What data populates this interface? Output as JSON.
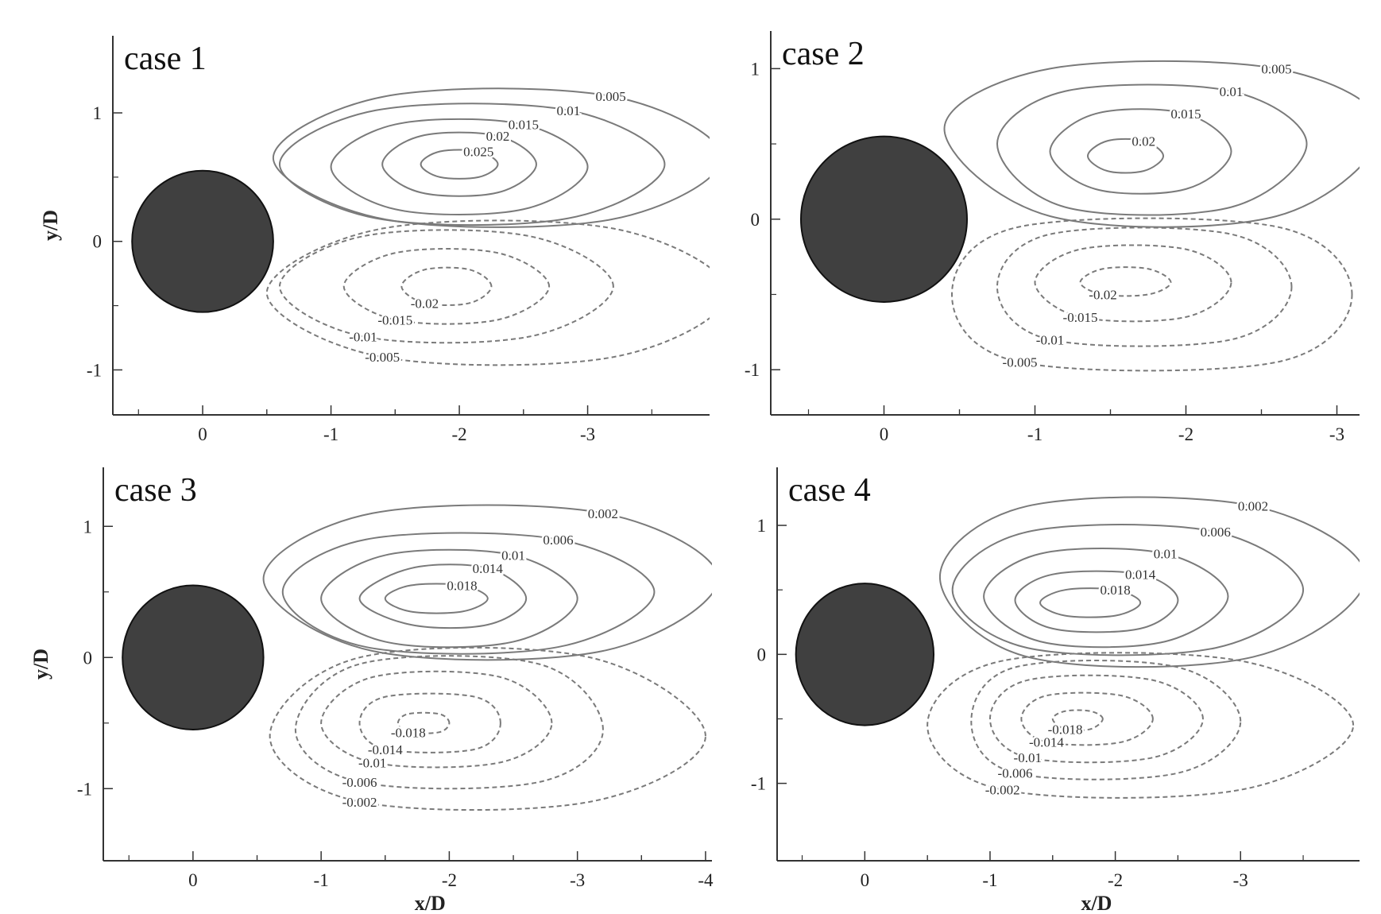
{
  "chart_data": [
    {
      "type": "contour",
      "title": "case 1",
      "ylabel": "y/D",
      "xlim": [
        0.7,
        -3.95
      ],
      "ylim": [
        -1.35,
        1.6
      ],
      "xticks": [
        0,
        -1,
        -2,
        -3
      ],
      "yticks": [
        -1,
        0,
        1
      ],
      "contours": [
        {
          "level": 0.025,
          "x": [
            -2.3,
            -2.15,
            -1.85,
            -1.7,
            -1.85,
            -2.15
          ],
          "y": [
            0.6,
            0.7,
            0.7,
            0.6,
            0.5,
            0.5
          ]
        },
        {
          "level": 0.02,
          "x": [
            -2.6,
            -2.3,
            -1.7,
            -1.4,
            -1.7,
            -2.3
          ],
          "y": [
            0.6,
            0.82,
            0.82,
            0.6,
            0.38,
            0.38
          ]
        },
        {
          "level": 0.015,
          "x": [
            -3.0,
            -2.5,
            -1.5,
            -1.0,
            -1.5,
            -2.5
          ],
          "y": [
            0.58,
            0.91,
            0.91,
            0.58,
            0.25,
            0.25
          ]
        },
        {
          "level": 0.01,
          "x": [
            -3.6,
            -2.85,
            -1.35,
            -0.6,
            -1.35,
            -2.85
          ],
          "y": [
            0.6,
            1.02,
            1.02,
            0.6,
            0.18,
            0.18
          ]
        },
        {
          "level": 0.005,
          "x": [
            -4.05,
            -3.18,
            -1.43,
            -0.55,
            -1.43,
            -3.18
          ],
          "y": [
            0.65,
            1.13,
            1.13,
            0.65,
            0.17,
            0.17
          ]
        },
        {
          "level": -0.02,
          "x": [
            -2.25,
            -2.08,
            -1.73,
            -1.55,
            -1.73,
            -2.08
          ],
          "y": [
            -0.35,
            -0.22,
            -0.22,
            -0.35,
            -0.48,
            -0.48
          ]
        },
        {
          "level": -0.015,
          "x": [
            -2.7,
            -2.3,
            -1.5,
            -1.1,
            -1.5,
            -2.3
          ],
          "y": [
            -0.35,
            -0.09,
            -0.09,
            -0.35,
            -0.61,
            -0.61
          ]
        },
        {
          "level": -0.01,
          "x": [
            -3.2,
            -2.55,
            -1.25,
            -0.6,
            -1.25,
            -2.55
          ],
          "y": [
            -0.35,
            0.04,
            0.04,
            -0.35,
            -0.74,
            -0.74
          ]
        },
        {
          "level": -0.005,
          "x": [
            -4.1,
            -3.2,
            -1.4,
            -0.5,
            -1.4,
            -3.2
          ],
          "y": [
            -0.4,
            0.1,
            0.1,
            -0.4,
            -0.9,
            -0.9
          ]
        }
      ]
    },
    {
      "type": "contour",
      "title": "case 2",
      "xlim": [
        0.75,
        -3.15
      ],
      "ylim": [
        -1.3,
        1.25
      ],
      "xticks": [
        0,
        -1,
        -2,
        -3
      ],
      "yticks": [
        -1,
        0,
        1
      ],
      "contours": [
        {
          "level": 0.02,
          "x": [
            -1.85,
            -1.72,
            -1.48,
            -1.35,
            -1.48,
            -1.72
          ],
          "y": [
            0.42,
            0.52,
            0.52,
            0.42,
            0.32,
            0.32
          ]
        },
        {
          "level": 0.015,
          "x": [
            -2.3,
            -2.0,
            -1.4,
            -1.1,
            -1.4,
            -2.0
          ],
          "y": [
            0.45,
            0.7,
            0.7,
            0.45,
            0.2,
            0.2
          ]
        },
        {
          "level": 0.01,
          "x": [
            -2.8,
            -2.3,
            -1.2,
            -0.75,
            -1.2,
            -2.3
          ],
          "y": [
            0.5,
            0.85,
            0.85,
            0.5,
            0.08,
            0.08
          ]
        },
        {
          "level": 0.005,
          "x": [
            -3.3,
            -2.6,
            -1.1,
            -0.4,
            -1.1,
            -2.6
          ],
          "y": [
            0.6,
            1.0,
            1.0,
            0.6,
            0.02,
            0.02
          ]
        },
        {
          "level": -0.02,
          "x": [
            -1.9,
            -1.75,
            -1.45,
            -1.3,
            -1.45,
            -1.75
          ],
          "y": [
            -0.42,
            -0.33,
            -0.33,
            -0.42,
            -0.5,
            -0.5
          ]
        },
        {
          "level": -0.015,
          "x": [
            -2.3,
            -2.0,
            -1.3,
            -1.0,
            -1.3,
            -2.0
          ],
          "y": [
            -0.42,
            -0.2,
            -0.2,
            -0.42,
            -0.65,
            -0.65
          ]
        },
        {
          "level": -0.01,
          "x": [
            -2.7,
            -2.3,
            -1.1,
            -0.75,
            -1.1,
            -2.3
          ],
          "y": [
            -0.45,
            -0.1,
            -0.1,
            -0.45,
            -0.8,
            -0.8
          ]
        },
        {
          "level": -0.005,
          "x": [
            -3.1,
            -2.6,
            -0.9,
            -0.45,
            -0.9,
            -2.6
          ],
          "y": [
            -0.5,
            -0.05,
            -0.05,
            -0.5,
            -0.95,
            -0.95
          ]
        }
      ]
    },
    {
      "type": "contour",
      "title": "case 3",
      "ylabel": "y/D",
      "xlabel": "x/D",
      "xlim": [
        0.7,
        -4.05
      ],
      "ylim": [
        -1.55,
        1.45
      ],
      "xticks": [
        0,
        -1,
        -2,
        -3,
        -4
      ],
      "yticks": [
        -1,
        0,
        1
      ],
      "contours": [
        {
          "level": 0.018,
          "x": [
            -2.3,
            -2.1,
            -1.7,
            -1.5,
            -1.7,
            -2.1
          ],
          "y": [
            0.45,
            0.55,
            0.55,
            0.45,
            0.35,
            0.35
          ]
        },
        {
          "level": 0.014,
          "x": [
            -2.6,
            -2.3,
            -1.7,
            -1.3,
            -1.7,
            -2.3
          ],
          "y": [
            0.45,
            0.68,
            0.68,
            0.45,
            0.25,
            0.25
          ]
        },
        {
          "level": 0.01,
          "x": [
            -3.0,
            -2.5,
            -1.5,
            -1.0,
            -1.5,
            -2.5
          ],
          "y": [
            0.45,
            0.78,
            0.78,
            0.45,
            0.12,
            0.12
          ]
        },
        {
          "level": 0.006,
          "x": [
            -3.6,
            -2.85,
            -1.35,
            -0.7,
            -1.35,
            -2.85
          ],
          "y": [
            0.5,
            0.9,
            0.9,
            0.5,
            0.08,
            0.08
          ]
        },
        {
          "level": 0.002,
          "x": [
            -4.1,
            -3.2,
            -1.4,
            -0.55,
            -1.4,
            -3.2
          ],
          "y": [
            0.6,
            1.1,
            1.1,
            0.6,
            0.05,
            0.05
          ]
        },
        {
          "level": -0.018,
          "x": [
            -2.0,
            -1.92,
            -1.68,
            -1.6,
            -1.68,
            -1.92
          ],
          "y": [
            -0.5,
            -0.43,
            -0.43,
            -0.5,
            -0.57,
            -0.57
          ]
        },
        {
          "level": -0.014,
          "x": [
            -2.4,
            -2.2,
            -1.5,
            -1.3,
            -1.5,
            -2.2
          ],
          "y": [
            -0.5,
            -0.3,
            -0.3,
            -0.5,
            -0.7,
            -0.7
          ]
        },
        {
          "level": -0.01,
          "x": [
            -2.8,
            -2.4,
            -1.4,
            -1.0,
            -1.4,
            -2.4
          ],
          "y": [
            -0.5,
            -0.15,
            -0.15,
            -0.5,
            -0.8,
            -0.8
          ]
        },
        {
          "level": -0.006,
          "x": [
            -3.2,
            -2.7,
            -1.3,
            -0.8,
            -1.3,
            -2.7
          ],
          "y": [
            -0.55,
            -0.05,
            -0.05,
            -0.55,
            -0.95,
            -0.95
          ]
        },
        {
          "level": -0.002,
          "x": [
            -4.0,
            -3.1,
            -1.3,
            -0.6,
            -1.3,
            -3.1
          ],
          "y": [
            -0.6,
            0.0,
            0.0,
            -0.6,
            -1.1,
            -1.1
          ]
        }
      ]
    },
    {
      "type": "contour",
      "title": "case 4",
      "xlabel": "x/D",
      "xlim": [
        0.7,
        -3.95
      ],
      "ylim": [
        -1.6,
        1.45
      ],
      "xticks": [
        0,
        -1,
        -2,
        -3
      ],
      "yticks": [
        -1,
        0,
        1
      ],
      "contours": [
        {
          "level": 0.018,
          "x": [
            -2.2,
            -2.0,
            -1.6,
            -1.4,
            -1.6,
            -2.0
          ],
          "y": [
            0.4,
            0.5,
            0.5,
            0.4,
            0.3,
            0.3
          ]
        },
        {
          "level": 0.014,
          "x": [
            -2.5,
            -2.2,
            -1.5,
            -1.2,
            -1.5,
            -2.2
          ],
          "y": [
            0.42,
            0.62,
            0.62,
            0.42,
            0.2,
            0.2
          ]
        },
        {
          "level": 0.01,
          "x": [
            -2.9,
            -2.4,
            -1.4,
            -0.95,
            -1.4,
            -2.4
          ],
          "y": [
            0.45,
            0.78,
            0.78,
            0.45,
            0.1,
            0.1
          ]
        },
        {
          "level": 0.006,
          "x": [
            -3.5,
            -2.8,
            -1.3,
            -0.7,
            -1.3,
            -2.8
          ],
          "y": [
            0.5,
            0.95,
            0.95,
            0.5,
            0.05,
            0.05
          ]
        },
        {
          "level": 0.002,
          "x": [
            -4.0,
            -3.1,
            -1.3,
            -0.6,
            -1.3,
            -3.1
          ],
          "y": [
            0.6,
            1.15,
            1.15,
            0.6,
            -0.02,
            -0.02
          ]
        },
        {
          "level": -0.018,
          "x": [
            -1.9,
            -1.8,
            -1.6,
            -1.5,
            -1.6,
            -1.8
          ],
          "y": [
            -0.5,
            -0.44,
            -0.44,
            -0.5,
            -0.58,
            -0.58
          ]
        },
        {
          "level": -0.014,
          "x": [
            -2.3,
            -2.05,
            -1.45,
            -1.25,
            -1.45,
            -2.05
          ],
          "y": [
            -0.5,
            -0.32,
            -0.32,
            -0.5,
            -0.68,
            -0.68
          ]
        },
        {
          "level": -0.01,
          "x": [
            -2.7,
            -2.3,
            -1.3,
            -1.0,
            -1.3,
            -2.3
          ],
          "y": [
            -0.5,
            -0.2,
            -0.2,
            -0.5,
            -0.8,
            -0.8
          ]
        },
        {
          "level": -0.006,
          "x": [
            -3.0,
            -2.5,
            -1.2,
            -0.85,
            -1.2,
            -2.5
          ],
          "y": [
            -0.52,
            -0.1,
            -0.1,
            -0.52,
            -0.92,
            -0.92
          ]
        },
        {
          "level": -0.002,
          "x": [
            -3.9,
            -3.0,
            -1.1,
            -0.5,
            -1.1,
            -3.0
          ],
          "y": [
            -0.55,
            -0.05,
            -0.05,
            -0.55,
            -1.05,
            -1.05
          ]
        }
      ]
    }
  ]
}
